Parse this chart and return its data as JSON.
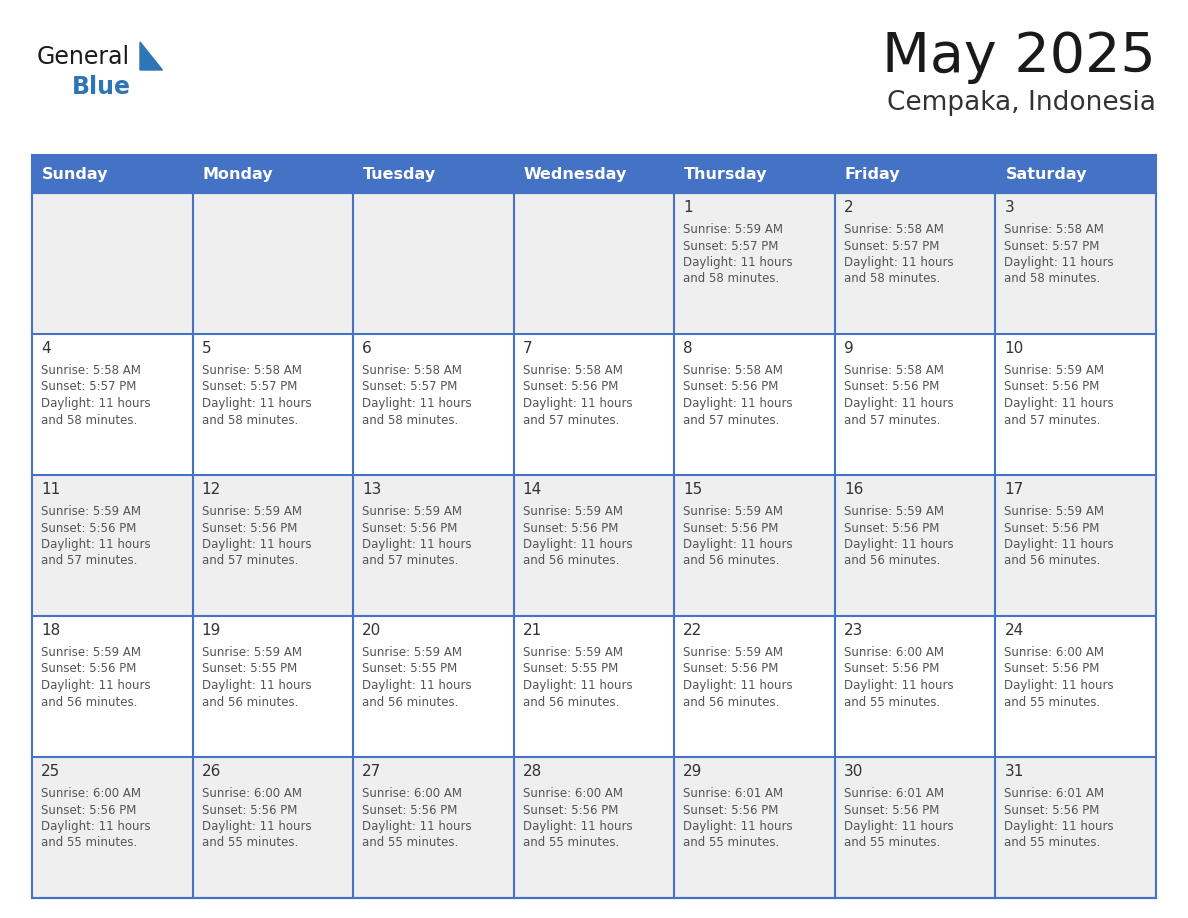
{
  "title": "May 2025",
  "subtitle": "Cempaka, Indonesia",
  "days_of_week": [
    "Sunday",
    "Monday",
    "Tuesday",
    "Wednesday",
    "Thursday",
    "Friday",
    "Saturday"
  ],
  "header_bg": "#4472C4",
  "header_text": "#FFFFFF",
  "cell_bg_odd": "#EFEFEF",
  "cell_bg_even": "#FFFFFF",
  "grid_line_color": "#4472C4",
  "day_number_color": "#333333",
  "cell_text_color": "#555555",
  "title_color": "#1a1a1a",
  "subtitle_color": "#333333",
  "calendar_data": [
    [
      {
        "day": null,
        "sunrise": null,
        "sunset": null,
        "daylight": null
      },
      {
        "day": null,
        "sunrise": null,
        "sunset": null,
        "daylight": null
      },
      {
        "day": null,
        "sunrise": null,
        "sunset": null,
        "daylight": null
      },
      {
        "day": null,
        "sunrise": null,
        "sunset": null,
        "daylight": null
      },
      {
        "day": 1,
        "sunrise": "5:59 AM",
        "sunset": "5:57 PM",
        "daylight": "11 hours and 58 minutes."
      },
      {
        "day": 2,
        "sunrise": "5:58 AM",
        "sunset": "5:57 PM",
        "daylight": "11 hours and 58 minutes."
      },
      {
        "day": 3,
        "sunrise": "5:58 AM",
        "sunset": "5:57 PM",
        "daylight": "11 hours and 58 minutes."
      }
    ],
    [
      {
        "day": 4,
        "sunrise": "5:58 AM",
        "sunset": "5:57 PM",
        "daylight": "11 hours and 58 minutes."
      },
      {
        "day": 5,
        "sunrise": "5:58 AM",
        "sunset": "5:57 PM",
        "daylight": "11 hours and 58 minutes."
      },
      {
        "day": 6,
        "sunrise": "5:58 AM",
        "sunset": "5:57 PM",
        "daylight": "11 hours and 58 minutes."
      },
      {
        "day": 7,
        "sunrise": "5:58 AM",
        "sunset": "5:56 PM",
        "daylight": "11 hours and 57 minutes."
      },
      {
        "day": 8,
        "sunrise": "5:58 AM",
        "sunset": "5:56 PM",
        "daylight": "11 hours and 57 minutes."
      },
      {
        "day": 9,
        "sunrise": "5:58 AM",
        "sunset": "5:56 PM",
        "daylight": "11 hours and 57 minutes."
      },
      {
        "day": 10,
        "sunrise": "5:59 AM",
        "sunset": "5:56 PM",
        "daylight": "11 hours and 57 minutes."
      }
    ],
    [
      {
        "day": 11,
        "sunrise": "5:59 AM",
        "sunset": "5:56 PM",
        "daylight": "11 hours and 57 minutes."
      },
      {
        "day": 12,
        "sunrise": "5:59 AM",
        "sunset": "5:56 PM",
        "daylight": "11 hours and 57 minutes."
      },
      {
        "day": 13,
        "sunrise": "5:59 AM",
        "sunset": "5:56 PM",
        "daylight": "11 hours and 57 minutes."
      },
      {
        "day": 14,
        "sunrise": "5:59 AM",
        "sunset": "5:56 PM",
        "daylight": "11 hours and 56 minutes."
      },
      {
        "day": 15,
        "sunrise": "5:59 AM",
        "sunset": "5:56 PM",
        "daylight": "11 hours and 56 minutes."
      },
      {
        "day": 16,
        "sunrise": "5:59 AM",
        "sunset": "5:56 PM",
        "daylight": "11 hours and 56 minutes."
      },
      {
        "day": 17,
        "sunrise": "5:59 AM",
        "sunset": "5:56 PM",
        "daylight": "11 hours and 56 minutes."
      }
    ],
    [
      {
        "day": 18,
        "sunrise": "5:59 AM",
        "sunset": "5:56 PM",
        "daylight": "11 hours and 56 minutes."
      },
      {
        "day": 19,
        "sunrise": "5:59 AM",
        "sunset": "5:55 PM",
        "daylight": "11 hours and 56 minutes."
      },
      {
        "day": 20,
        "sunrise": "5:59 AM",
        "sunset": "5:55 PM",
        "daylight": "11 hours and 56 minutes."
      },
      {
        "day": 21,
        "sunrise": "5:59 AM",
        "sunset": "5:55 PM",
        "daylight": "11 hours and 56 minutes."
      },
      {
        "day": 22,
        "sunrise": "5:59 AM",
        "sunset": "5:56 PM",
        "daylight": "11 hours and 56 minutes."
      },
      {
        "day": 23,
        "sunrise": "6:00 AM",
        "sunset": "5:56 PM",
        "daylight": "11 hours and 55 minutes."
      },
      {
        "day": 24,
        "sunrise": "6:00 AM",
        "sunset": "5:56 PM",
        "daylight": "11 hours and 55 minutes."
      }
    ],
    [
      {
        "day": 25,
        "sunrise": "6:00 AM",
        "sunset": "5:56 PM",
        "daylight": "11 hours and 55 minutes."
      },
      {
        "day": 26,
        "sunrise": "6:00 AM",
        "sunset": "5:56 PM",
        "daylight": "11 hours and 55 minutes."
      },
      {
        "day": 27,
        "sunrise": "6:00 AM",
        "sunset": "5:56 PM",
        "daylight": "11 hours and 55 minutes."
      },
      {
        "day": 28,
        "sunrise": "6:00 AM",
        "sunset": "5:56 PM",
        "daylight": "11 hours and 55 minutes."
      },
      {
        "day": 29,
        "sunrise": "6:01 AM",
        "sunset": "5:56 PM",
        "daylight": "11 hours and 55 minutes."
      },
      {
        "day": 30,
        "sunrise": "6:01 AM",
        "sunset": "5:56 PM",
        "daylight": "11 hours and 55 minutes."
      },
      {
        "day": 31,
        "sunrise": "6:01 AM",
        "sunset": "5:56 PM",
        "daylight": "11 hours and 55 minutes."
      }
    ]
  ]
}
